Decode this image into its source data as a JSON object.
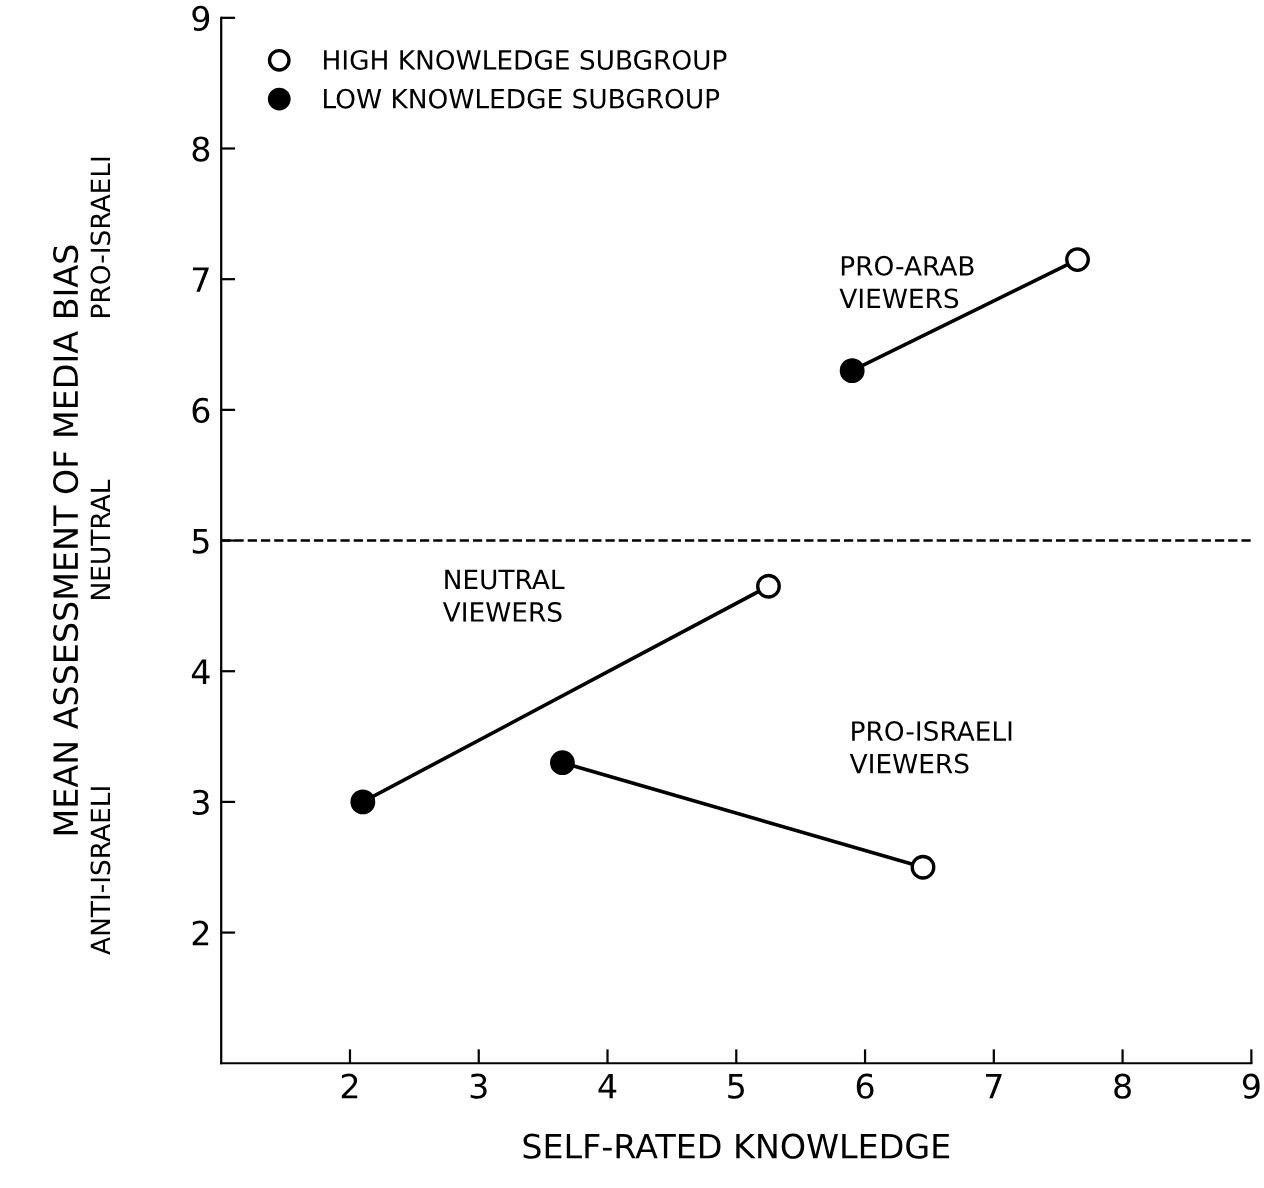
{
  "chart_data": {
    "type": "scatter",
    "xlabel": "SELF-RATED KNOWLEDGE",
    "ylabel": "MEAN ASSESSMENT OF MEDIA BIAS",
    "xlim": [
      1,
      9
    ],
    "xticks": [
      2,
      3,
      4,
      5,
      6,
      7,
      8,
      9
    ],
    "ylim": [
      1,
      9
    ],
    "yticks": [
      2,
      3,
      4,
      5,
      6,
      7,
      8,
      9
    ],
    "grid": false,
    "legend": "top left",
    "series": [
      {
        "type": "line",
        "marker": "none",
        "color": "#000000",
        "x": [
          5.9,
          7.65
        ],
        "values": [
          6.3,
          7.15
        ]
      },
      {
        "type": "line",
        "marker": "none",
        "color": "#000000",
        "x": [
          2.1,
          5.25
        ],
        "values": [
          3.0,
          4.65
        ]
      },
      {
        "type": "line",
        "marker": "none",
        "color": "#000000",
        "x": [
          3.65,
          6.45
        ],
        "values": [
          3.3,
          2.5
        ]
      },
      {
        "name": "HIGH KNOWLEDGE SUBGROUP",
        "marker": "circle",
        "color": "#ffffff",
        "x": [
          7.65,
          5.25,
          6.45
        ],
        "values": [
          7.15,
          4.65,
          2.5
        ]
      },
      {
        "name": "LOW KNOWLEDGE SUBGROUP",
        "marker": "circle",
        "color": "#000000",
        "x": [
          5.9,
          2.1,
          3.65
        ],
        "values": [
          6.3,
          3.0,
          3.3
        ]
      }
    ],
    "ref_lines": [
      {
        "axis": "y",
        "value": 5,
        "line_style": "dashed",
        "color": "#000000"
      }
    ],
    "annotations": [
      "PRO-ARAB\nVIEWERS",
      "NEUTRAL\nVIEWERS",
      "PRO-ISRAELI\nVIEWERS",
      "PRO-ISRAELI",
      "NEUTRAL",
      "ANTI-ISRAELI"
    ]
  }
}
